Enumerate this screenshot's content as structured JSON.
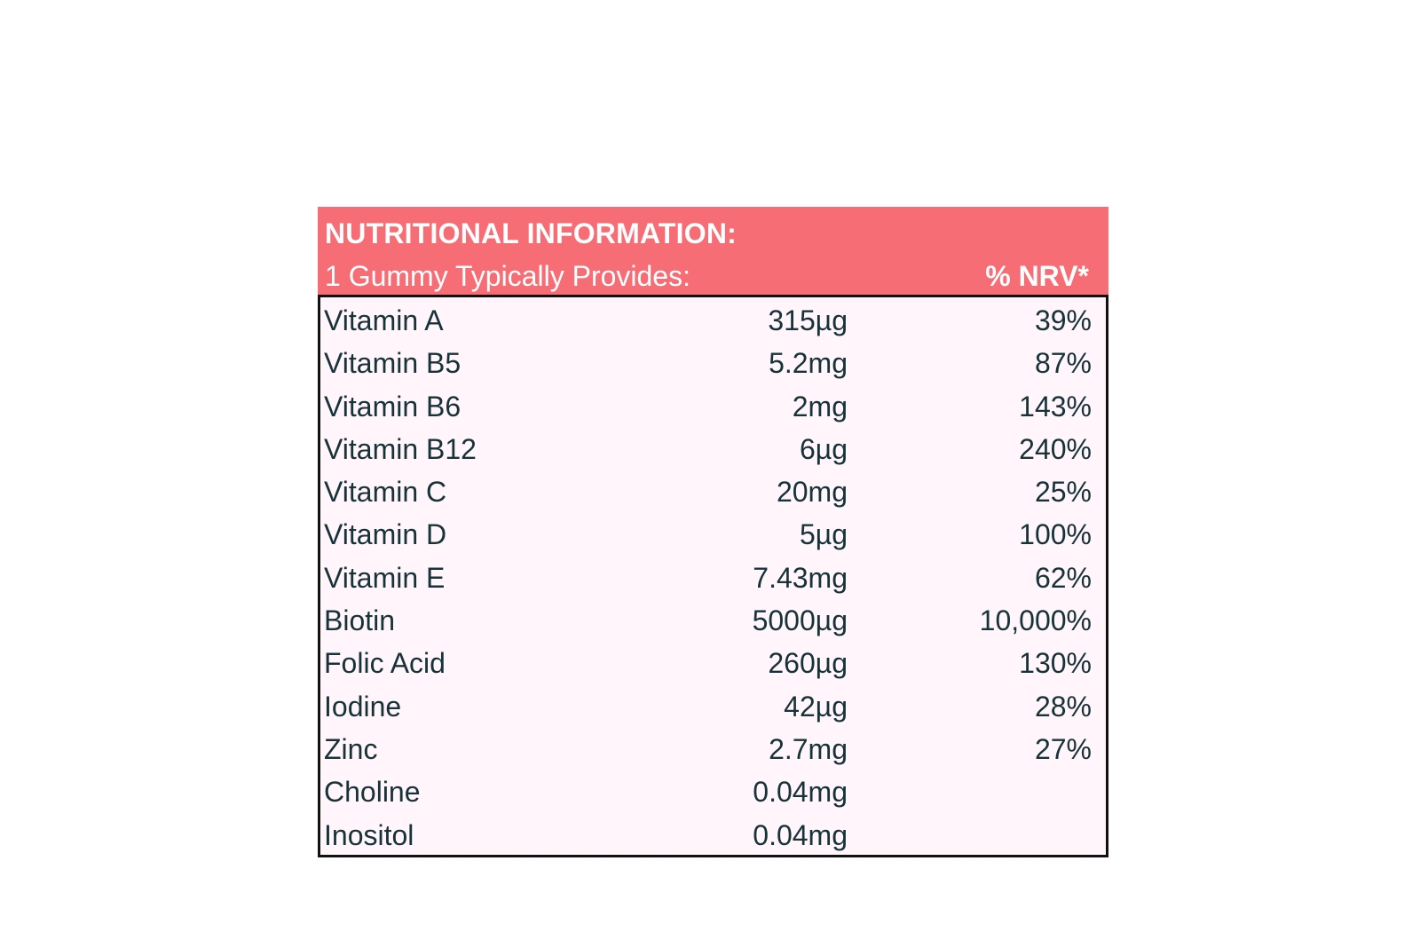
{
  "header": {
    "title": "NUTRITIONAL INFORMATION:",
    "subtitle": "1 Gummy Typically Provides:",
    "nrv_label": "% NRV*"
  },
  "colors": {
    "header_bg": "#f76d75",
    "body_bg": "#fff5fb",
    "text": "#163338"
  },
  "rows": [
    {
      "name": "Vitamin A",
      "amount": "315µg",
      "nrv": "39%"
    },
    {
      "name": "Vitamin B5",
      "amount": "5.2mg",
      "nrv": "87%"
    },
    {
      "name": "Vitamin B6",
      "amount": "2mg",
      "nrv": "143%"
    },
    {
      "name": "Vitamin B12",
      "amount": "6µg",
      "nrv": "240%"
    },
    {
      "name": "Vitamin C",
      "amount": "20mg",
      "nrv": "25%"
    },
    {
      "name": "Vitamin D",
      "amount": "5µg",
      "nrv": "100%"
    },
    {
      "name": "Vitamin E",
      "amount": "7.43mg",
      "nrv": "62%"
    },
    {
      "name": "Biotin",
      "amount": "5000µg",
      "nrv": "10,000%"
    },
    {
      "name": "Folic Acid",
      "amount": "260µg",
      "nrv": "130%"
    },
    {
      "name": "Iodine",
      "amount": "42µg",
      "nrv": "28%"
    },
    {
      "name": "Zinc",
      "amount": "2.7mg",
      "nrv": "27%"
    },
    {
      "name": "Choline",
      "amount": "0.04mg",
      "nrv": ""
    },
    {
      "name": "Inositol",
      "amount": "0.04mg",
      "nrv": ""
    }
  ]
}
